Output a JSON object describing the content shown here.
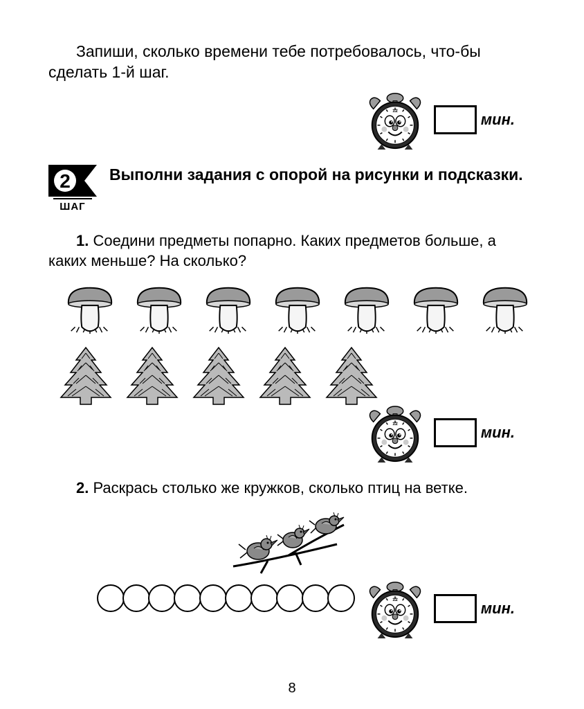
{
  "intro": "Запиши, сколько времени тебе потребовалось, что-бы сделать 1-й шаг.",
  "min_label": "мин.",
  "step": {
    "number": "2",
    "label": "ШАГ",
    "title": "Выполни задания с опорой на рисунки и подсказки."
  },
  "task1": {
    "num": "1.",
    "text": " Соедини предметы попарно. Каких предметов больше, а каких меньше? На сколько?",
    "mushroom_count": 7,
    "tree_count": 5,
    "colors": {
      "mushroom_cap": "#9a9a9a",
      "mushroom_stem": "#f5f5f5",
      "tree_fill": "#bababa",
      "outline": "#000000"
    }
  },
  "task2": {
    "num": "2.",
    "text": " Раскрась столько же кружков, сколько птиц на ветке.",
    "bird_count": 3,
    "circle_count": 10,
    "colors": {
      "bird_fill": "#8a8a8a",
      "outline": "#000000"
    }
  },
  "page_number": "8",
  "clock": {
    "body_color": "#2a2a2a",
    "face_color": "#ffffff",
    "bell_color": "#9c9c9c"
  }
}
